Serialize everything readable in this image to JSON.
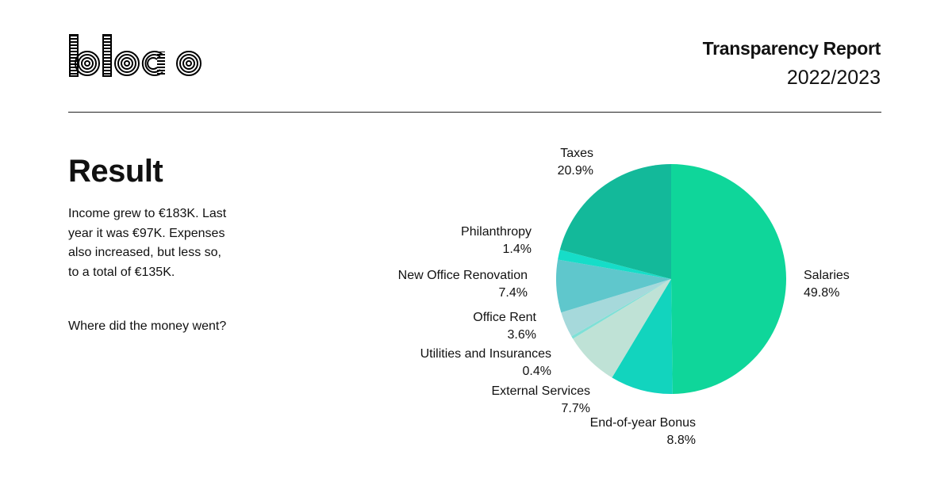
{
  "header": {
    "logo_text": "bloco",
    "report_title": "Transparency Report",
    "report_year": "2022/2023"
  },
  "summary": {
    "heading": "Result",
    "paragraph_1": "Income grew to €183K. Last year it was €97K. Expenses also increased, but less so, to a total of €135K.",
    "paragraph_2": "Where did the money went?"
  },
  "chart_data": {
    "type": "pie",
    "title": "",
    "start_angle_deg": 0,
    "direction": "clockwise",
    "slices": [
      {
        "label": "Salaries",
        "value": 49.8,
        "value_label": "49.8%",
        "color": "#0fd69a"
      },
      {
        "label": "End-of-year Bonus",
        "value": 8.8,
        "value_label": "8.8%",
        "color": "#12d4be"
      },
      {
        "label": "External Services",
        "value": 7.7,
        "value_label": "7.7%",
        "color": "#bfe2d6"
      },
      {
        "label": "Utilities and Insurances",
        "value": 0.4,
        "value_label": "0.4%",
        "color": "#7fe0d6"
      },
      {
        "label": "Office Rent",
        "value": 3.6,
        "value_label": "3.6%",
        "color": "#a6d9db"
      },
      {
        "label": "New Office Renovation",
        "value": 7.4,
        "value_label": "7.4%",
        "color": "#5fc7cc"
      },
      {
        "label": "Philanthropy",
        "value": 1.4,
        "value_label": "1.4%",
        "color": "#16ddc8"
      },
      {
        "label": "Taxes",
        "value": 20.9,
        "value_label": "20.9%",
        "color": "#13b99a"
      }
    ]
  }
}
